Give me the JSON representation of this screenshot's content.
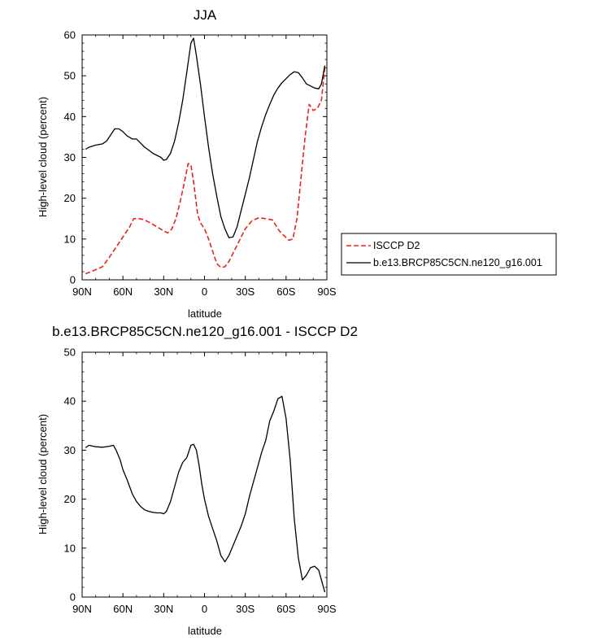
{
  "charts": [
    {
      "id": "top",
      "title": "JJA",
      "xlabel": "latitude",
      "ylabel": "High-level cloud (percent)",
      "xticks": [
        "90N",
        "60N",
        "30N",
        "0",
        "30S",
        "60S",
        "90S"
      ]
    },
    {
      "id": "bottom",
      "title": "b.e13.BRCP85C5CN.ne120_g16.001 - ISCCP D2",
      "xlabel": "latitude",
      "ylabel": "High-level cloud (percent)",
      "xticks": [
        "90N",
        "60N",
        "30N",
        "0",
        "30S",
        "60S",
        "90S"
      ]
    }
  ],
  "legend": [
    {
      "name": "ISCCP D2",
      "color": "#e8241f",
      "dash": "dashed"
    },
    {
      "name": "b.e13.BRCP85C5CN.ne120_g16.001",
      "color": "#000000",
      "dash": "solid"
    }
  ],
  "chart_data": [
    {
      "type": "line",
      "title": "JJA",
      "xlabel": "latitude",
      "ylabel": "High-level cloud (percent)",
      "xlim": [
        90,
        -90
      ],
      "ylim": [
        0,
        60
      ],
      "yticks": [
        0,
        10,
        20,
        30,
        40,
        50,
        60
      ],
      "xtick_values": [
        90,
        60,
        30,
        0,
        -30,
        -60,
        -90
      ],
      "xtick_labels": [
        "90N",
        "60N",
        "30N",
        "0",
        "30S",
        "60S",
        "90S"
      ],
      "legend_position": "right",
      "series": [
        {
          "name": "ISCCP D2",
          "color": "#e8241f",
          "dash": "dashed",
          "x": [
            87.5,
            85,
            80,
            75,
            70,
            65,
            60,
            55,
            52,
            48,
            45,
            40,
            35,
            30,
            27,
            24,
            21,
            18,
            15,
            12,
            10,
            8,
            5,
            3,
            0,
            -3,
            -6,
            -9,
            -12,
            -15,
            -18,
            -21,
            -24,
            -27,
            -30,
            -35,
            -40,
            -45,
            -50,
            -55,
            -58,
            -62,
            -65,
            -68,
            -71,
            -74,
            -77,
            -80,
            -83,
            -86,
            -88.5
          ],
          "y": [
            1.5,
            1.8,
            2.5,
            3.2,
            5.5,
            8,
            10.5,
            13,
            15,
            15,
            14.8,
            14,
            13,
            12,
            11.5,
            12.5,
            15,
            19,
            23.5,
            28.5,
            28.2,
            24,
            16,
            14,
            12.5,
            10,
            7,
            4,
            3,
            3.2,
            4.5,
            6.5,
            8.5,
            10.5,
            12.5,
            14.5,
            15.2,
            15,
            14.7,
            12,
            11,
            9.7,
            10,
            15,
            25,
            35,
            43,
            41.5,
            42,
            44,
            52
          ]
        },
        {
          "name": "b.e13.BRCP85C5CN.ne120_g16.001",
          "color": "#000000",
          "dash": "solid",
          "x": [
            87.5,
            85,
            80,
            75,
            72,
            69,
            66,
            63,
            60,
            57,
            53,
            50,
            47,
            44,
            41,
            38,
            35,
            32,
            30,
            28,
            25,
            22,
            19,
            16,
            13,
            10,
            8,
            6,
            3,
            0,
            -3,
            -6,
            -9,
            -12,
            -15,
            -18,
            -21,
            -24,
            -27,
            -30,
            -33,
            -36,
            -39,
            -42,
            -45,
            -48,
            -51,
            -54,
            -57,
            -60,
            -63,
            -66,
            -69,
            -72,
            -75,
            -78,
            -81,
            -84,
            -86,
            -88.5
          ],
          "y": [
            32,
            32.5,
            33,
            33.3,
            34,
            35.5,
            37,
            37,
            36.3,
            35.3,
            34.5,
            34.5,
            33.5,
            32.5,
            31.8,
            31,
            30.5,
            30,
            29.3,
            29.5,
            31,
            34,
            38.5,
            44,
            51,
            58,
            59.2,
            55,
            48,
            40,
            32.5,
            26,
            20.5,
            15.5,
            12.5,
            10.3,
            10.5,
            13,
            17,
            21,
            25,
            29.5,
            34,
            37.5,
            40.5,
            43,
            45.3,
            47,
            48.3,
            49.3,
            50.3,
            51,
            50.8,
            49.5,
            48,
            47.5,
            47,
            46.8,
            48,
            52.5
          ]
        }
      ]
    },
    {
      "type": "line",
      "title": "b.e13.BRCP85C5CN.ne120_g16.001 - ISCCP D2",
      "xlabel": "latitude",
      "ylabel": "High-level cloud (percent)",
      "xlim": [
        90,
        -90
      ],
      "ylim": [
        0,
        50
      ],
      "yticks": [
        0,
        10,
        20,
        30,
        40,
        50
      ],
      "xtick_values": [
        90,
        60,
        30,
        0,
        -30,
        -60,
        -90
      ],
      "xtick_labels": [
        "90N",
        "60N",
        "30N",
        "0",
        "30S",
        "60S",
        "90S"
      ],
      "series": [
        {
          "color": "#000000",
          "dash": "solid",
          "x": [
            87.5,
            85,
            80,
            75,
            70,
            67,
            65,
            62,
            60,
            57,
            53,
            50,
            47,
            44,
            41,
            38,
            35,
            32,
            30,
            28,
            25,
            22,
            19,
            16,
            13,
            10,
            8,
            6,
            4,
            2,
            0,
            -3,
            -6,
            -9,
            -12,
            -15,
            -18,
            -21,
            -24,
            -27,
            -30,
            -33,
            -36,
            -39,
            -42,
            -45,
            -48,
            -51,
            -54,
            -57,
            -60,
            -63,
            -66,
            -69,
            -72,
            -75,
            -78,
            -81,
            -84,
            -86,
            -88.5
          ],
          "y": [
            30.5,
            31,
            30.7,
            30.6,
            30.8,
            31,
            30,
            28,
            26,
            24,
            21,
            19.5,
            18.5,
            17.8,
            17.5,
            17.3,
            17.2,
            17.2,
            17,
            17.5,
            19.5,
            22.5,
            25.5,
            27.5,
            28.5,
            31,
            31.2,
            30,
            27,
            23,
            20,
            16.5,
            14,
            11.5,
            8.5,
            7.2,
            8.5,
            10.5,
            12.5,
            14.5,
            17,
            20.5,
            23.5,
            26.5,
            29.5,
            32,
            36,
            38,
            40.5,
            41,
            36.5,
            28,
            16,
            8,
            3.5,
            4.5,
            6,
            6.3,
            5.5,
            3.5,
            1
          ]
        }
      ]
    }
  ]
}
